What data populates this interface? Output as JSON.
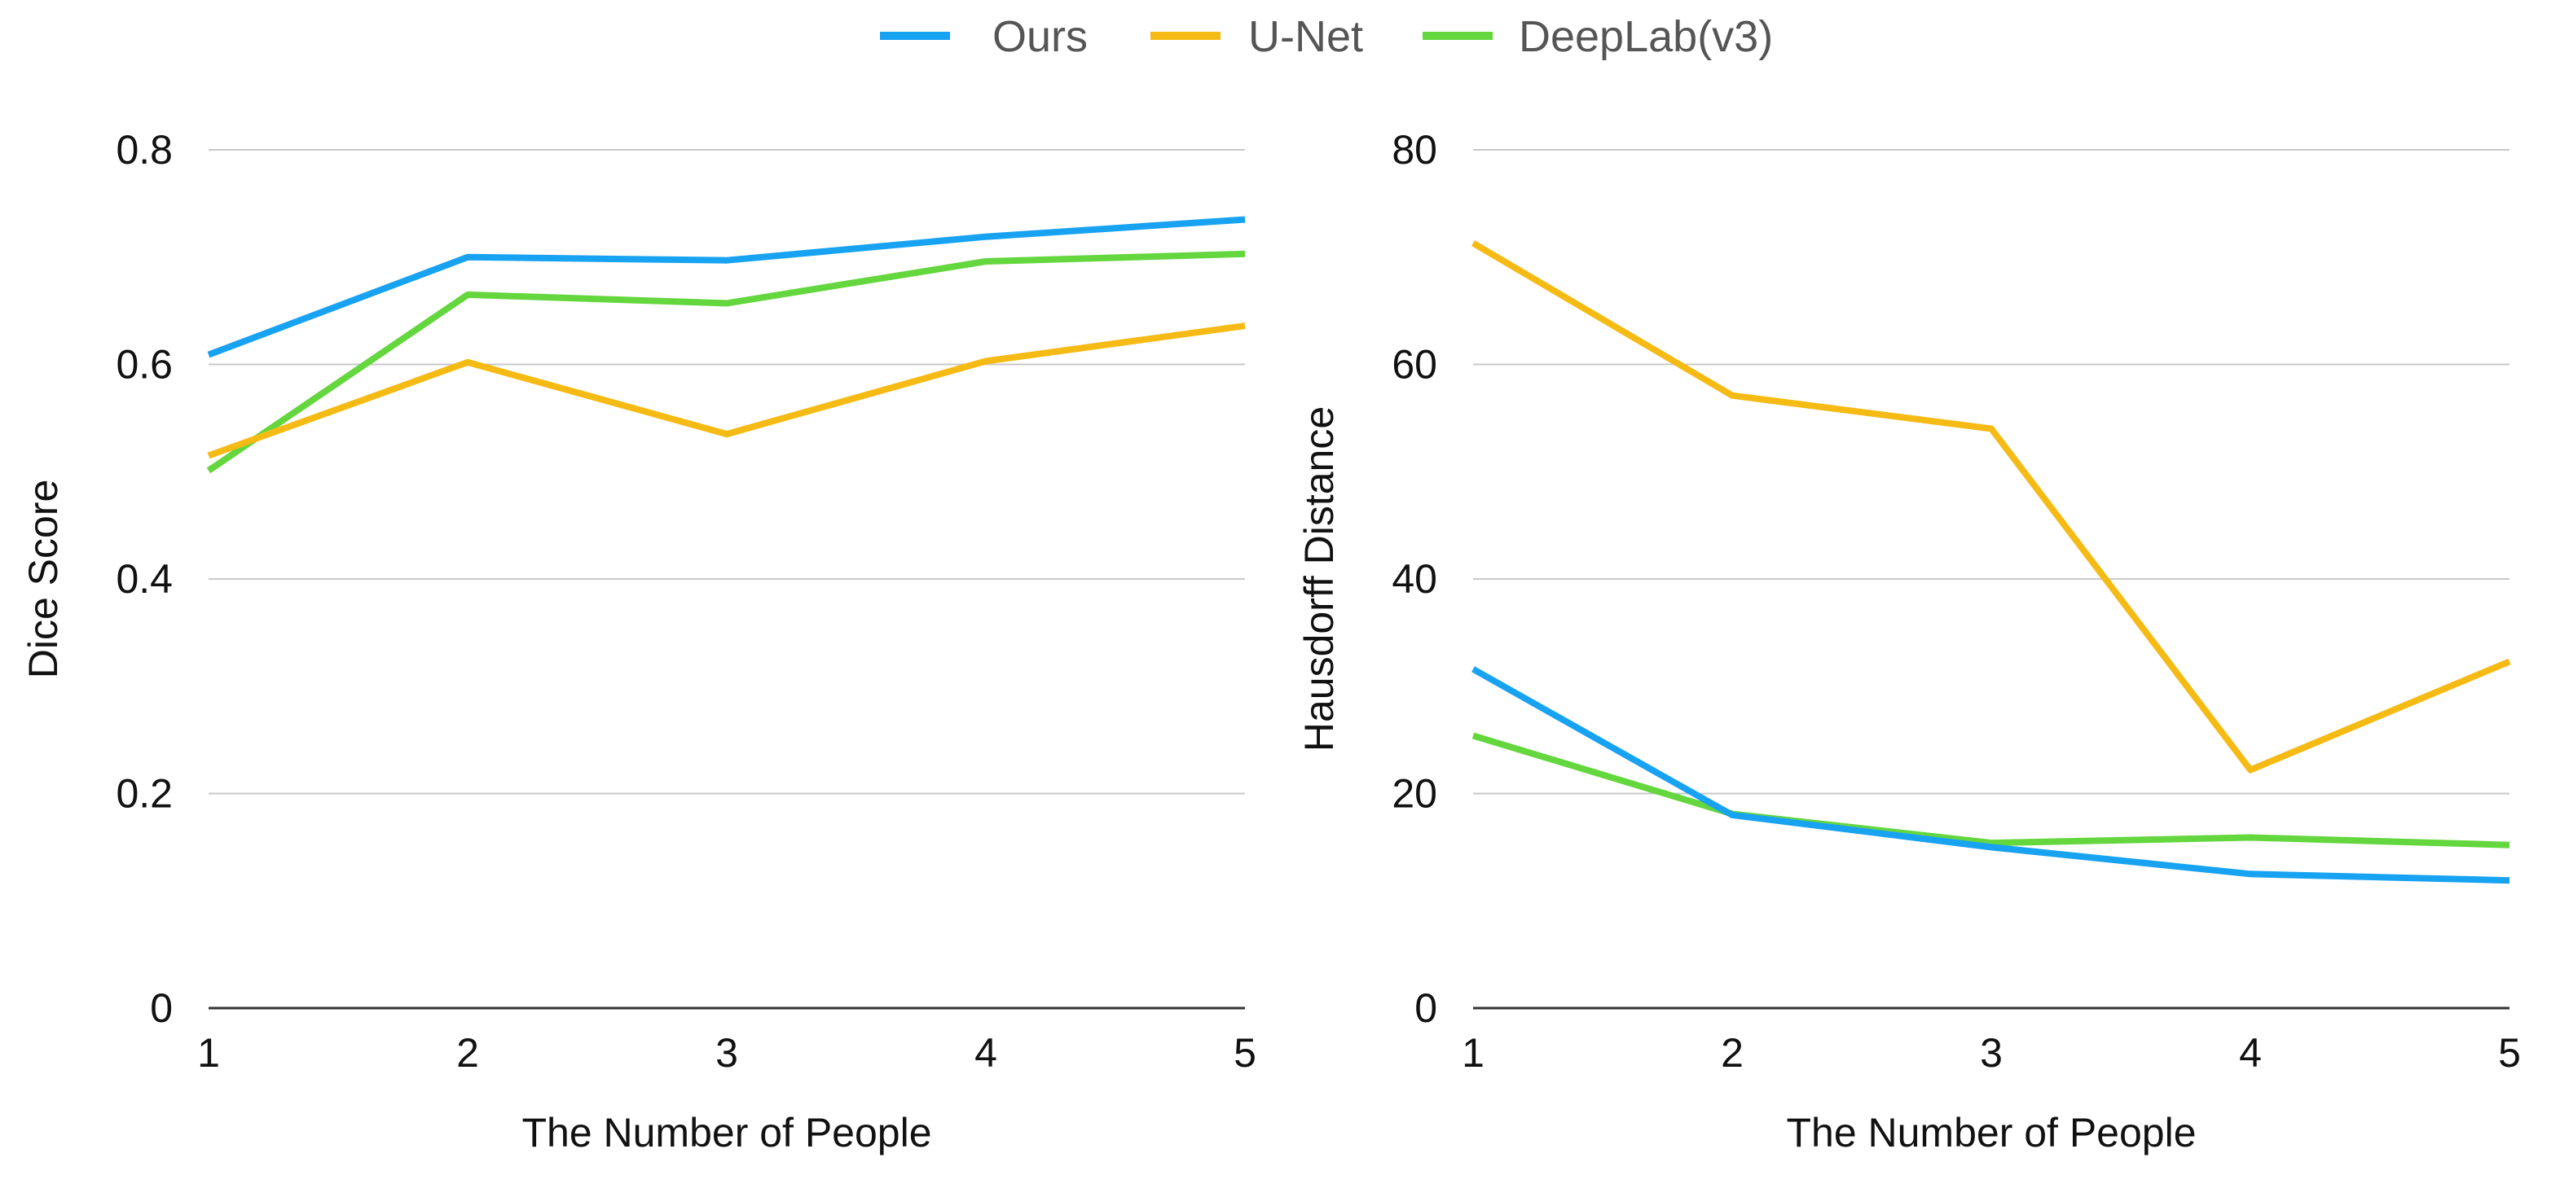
{
  "legend": [
    {
      "name": "Ours",
      "color": "#18a2f2"
    },
    {
      "name": "U-Net",
      "color": "#f5bb14"
    },
    {
      "name": "DeepLab(v3)",
      "color": "#64d63e"
    }
  ],
  "chart_data": [
    {
      "type": "line",
      "title": "",
      "xlabel": "The Number of People",
      "ylabel": "Dice Score",
      "x": [
        1,
        2,
        3,
        4,
        5
      ],
      "xtick_labels": [
        "1",
        "2",
        "3",
        "4",
        "5"
      ],
      "ylim": [
        0,
        0.8
      ],
      "yticks": [
        0,
        0.2,
        0.4,
        0.6,
        0.8
      ],
      "ytick_labels": [
        "0",
        "0.2",
        "0.4",
        "0.6",
        "0.8"
      ],
      "grid": true,
      "legend_position": "top-center",
      "series": [
        {
          "name": "Ours",
          "color": "#18a2f2",
          "values": [
            0.609,
            0.7,
            0.697,
            0.719,
            0.735
          ]
        },
        {
          "name": "U-Net",
          "color": "#f5bb14",
          "values": [
            0.515,
            0.602,
            0.535,
            0.603,
            0.636
          ]
        },
        {
          "name": "DeepLab(v3)",
          "color": "#64d63e",
          "values": [
            0.501,
            0.665,
            0.657,
            0.696,
            0.703
          ]
        }
      ]
    },
    {
      "type": "line",
      "title": "",
      "xlabel": "The Number of People",
      "ylabel": "Hausdorff Distance",
      "x": [
        1,
        2,
        3,
        4,
        5
      ],
      "xtick_labels": [
        "1",
        "2",
        "3",
        "4",
        "5"
      ],
      "ylim": [
        0,
        80
      ],
      "yticks": [
        0,
        20,
        40,
        60,
        80
      ],
      "ytick_labels": [
        "0",
        "20",
        "40",
        "60",
        "80"
      ],
      "grid": true,
      "legend_position": "top-center",
      "series": [
        {
          "name": "Ours",
          "color": "#18a2f2",
          "values": [
            31.6,
            18.0,
            15.0,
            12.5,
            11.9
          ]
        },
        {
          "name": "U-Net",
          "color": "#f5bb14",
          "values": [
            71.3,
            57.1,
            54.0,
            22.2,
            32.3
          ]
        },
        {
          "name": "DeepLab(v3)",
          "color": "#64d63e",
          "values": [
            25.4,
            18.1,
            15.4,
            15.9,
            15.2
          ]
        }
      ]
    }
  ]
}
